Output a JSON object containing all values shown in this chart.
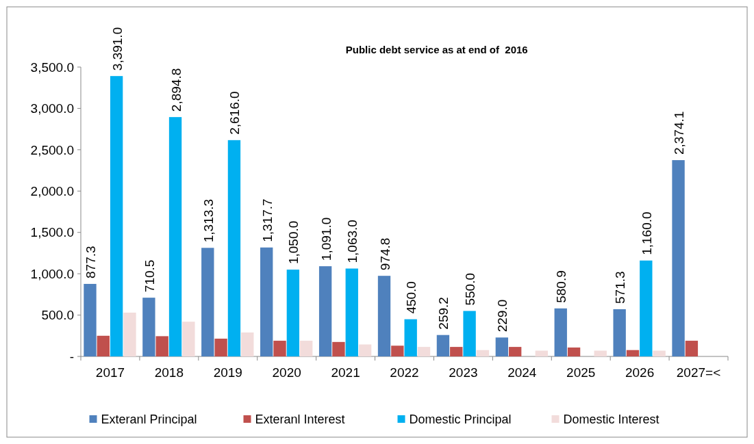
{
  "chart_data": {
    "type": "bar",
    "title": "Public debt service as at end of  2016",
    "categories": [
      "2017",
      "2018",
      "2019",
      "2020",
      "2021",
      "2022",
      "2023",
      "2024",
      "2025",
      "2026",
      "2027=<"
    ],
    "series": [
      {
        "name": "Exteranl Principal",
        "color": "#4f81bd",
        "values": [
          877.3,
          710.5,
          1313.3,
          1317.7,
          1091.0,
          974.8,
          259.2,
          229.0,
          580.9,
          571.3,
          2374.1
        ],
        "value_labels": [
          "877.3",
          "710.5",
          "1,313.3",
          "1,317.7",
          "1,091.0",
          "974.8",
          "259.2",
          "229.0",
          "580.9",
          "571.3",
          "2,374.1"
        ]
      },
      {
        "name": "Exteranl Interest",
        "color": "#c0504d",
        "values": [
          250,
          245,
          215,
          190,
          175,
          130,
          115,
          115,
          108,
          77,
          190
        ]
      },
      {
        "name": "Domestic Principal",
        "color": "#00b0f0",
        "values": [
          3391.0,
          2894.8,
          2616.0,
          1050.0,
          1063.0,
          450.0,
          550.0,
          null,
          null,
          1160.0,
          null
        ],
        "value_labels": [
          "3,391.0",
          "2,894.8",
          "2,616.0",
          "1,050.0",
          "1,063.0",
          "450.0",
          "550.0",
          null,
          null,
          "1,160.0",
          null
        ]
      },
      {
        "name": "Domestic Interest",
        "color": "#f2dcdb",
        "values": [
          530,
          420,
          290,
          190,
          145,
          115,
          77,
          70,
          70,
          70,
          null
        ]
      }
    ],
    "ylim": [
      0,
      3500
    ],
    "yticks": [
      {
        "value": 0,
        "label": "-"
      },
      {
        "value": 500,
        "label": "500.0"
      },
      {
        "value": 1000,
        "label": "1,000.0"
      },
      {
        "value": 1500,
        "label": "1,500.0"
      },
      {
        "value": 2000,
        "label": "2,000.0"
      },
      {
        "value": 2500,
        "label": "2,500.0"
      },
      {
        "value": 3000,
        "label": "3,000.0"
      },
      {
        "value": 3500,
        "label": "3,500.0"
      }
    ],
    "grid": false,
    "legend": "bottom"
  }
}
